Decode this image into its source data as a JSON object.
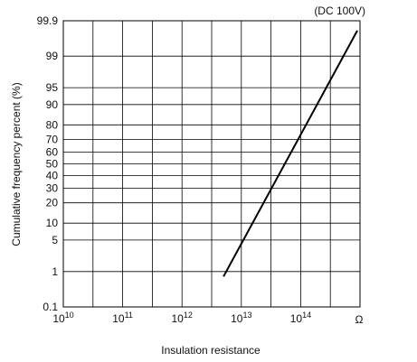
{
  "chart_data": {
    "type": "line",
    "title": "",
    "note": "(DC 100V)",
    "xlabel": "Insulation resistance",
    "ylabel": "Cumulative frequency percent (%)",
    "x_scale": "log",
    "y_scale": "probability",
    "xlim": [
      10000000000,
      1000000000000000
    ],
    "ylim": [
      0.1,
      99.9
    ],
    "x_ticks": [
      {
        "base": "10",
        "exp": "10"
      },
      {
        "base": "10",
        "exp": "11"
      },
      {
        "base": "10",
        "exp": "12"
      },
      {
        "base": "10",
        "exp": "13"
      },
      {
        "base": "10",
        "exp": "14"
      }
    ],
    "x_unit": "Ω",
    "y_ticks": [
      "0.1",
      "1",
      "5",
      "10",
      "20",
      "30",
      "40",
      "50",
      "60",
      "70",
      "80",
      "90",
      "95",
      "99",
      "99.9"
    ],
    "grid": true,
    "series": [
      {
        "x": [
          5000000000000,
          900000000000000
        ],
        "y": [
          0.75,
          99.8
        ]
      }
    ]
  }
}
